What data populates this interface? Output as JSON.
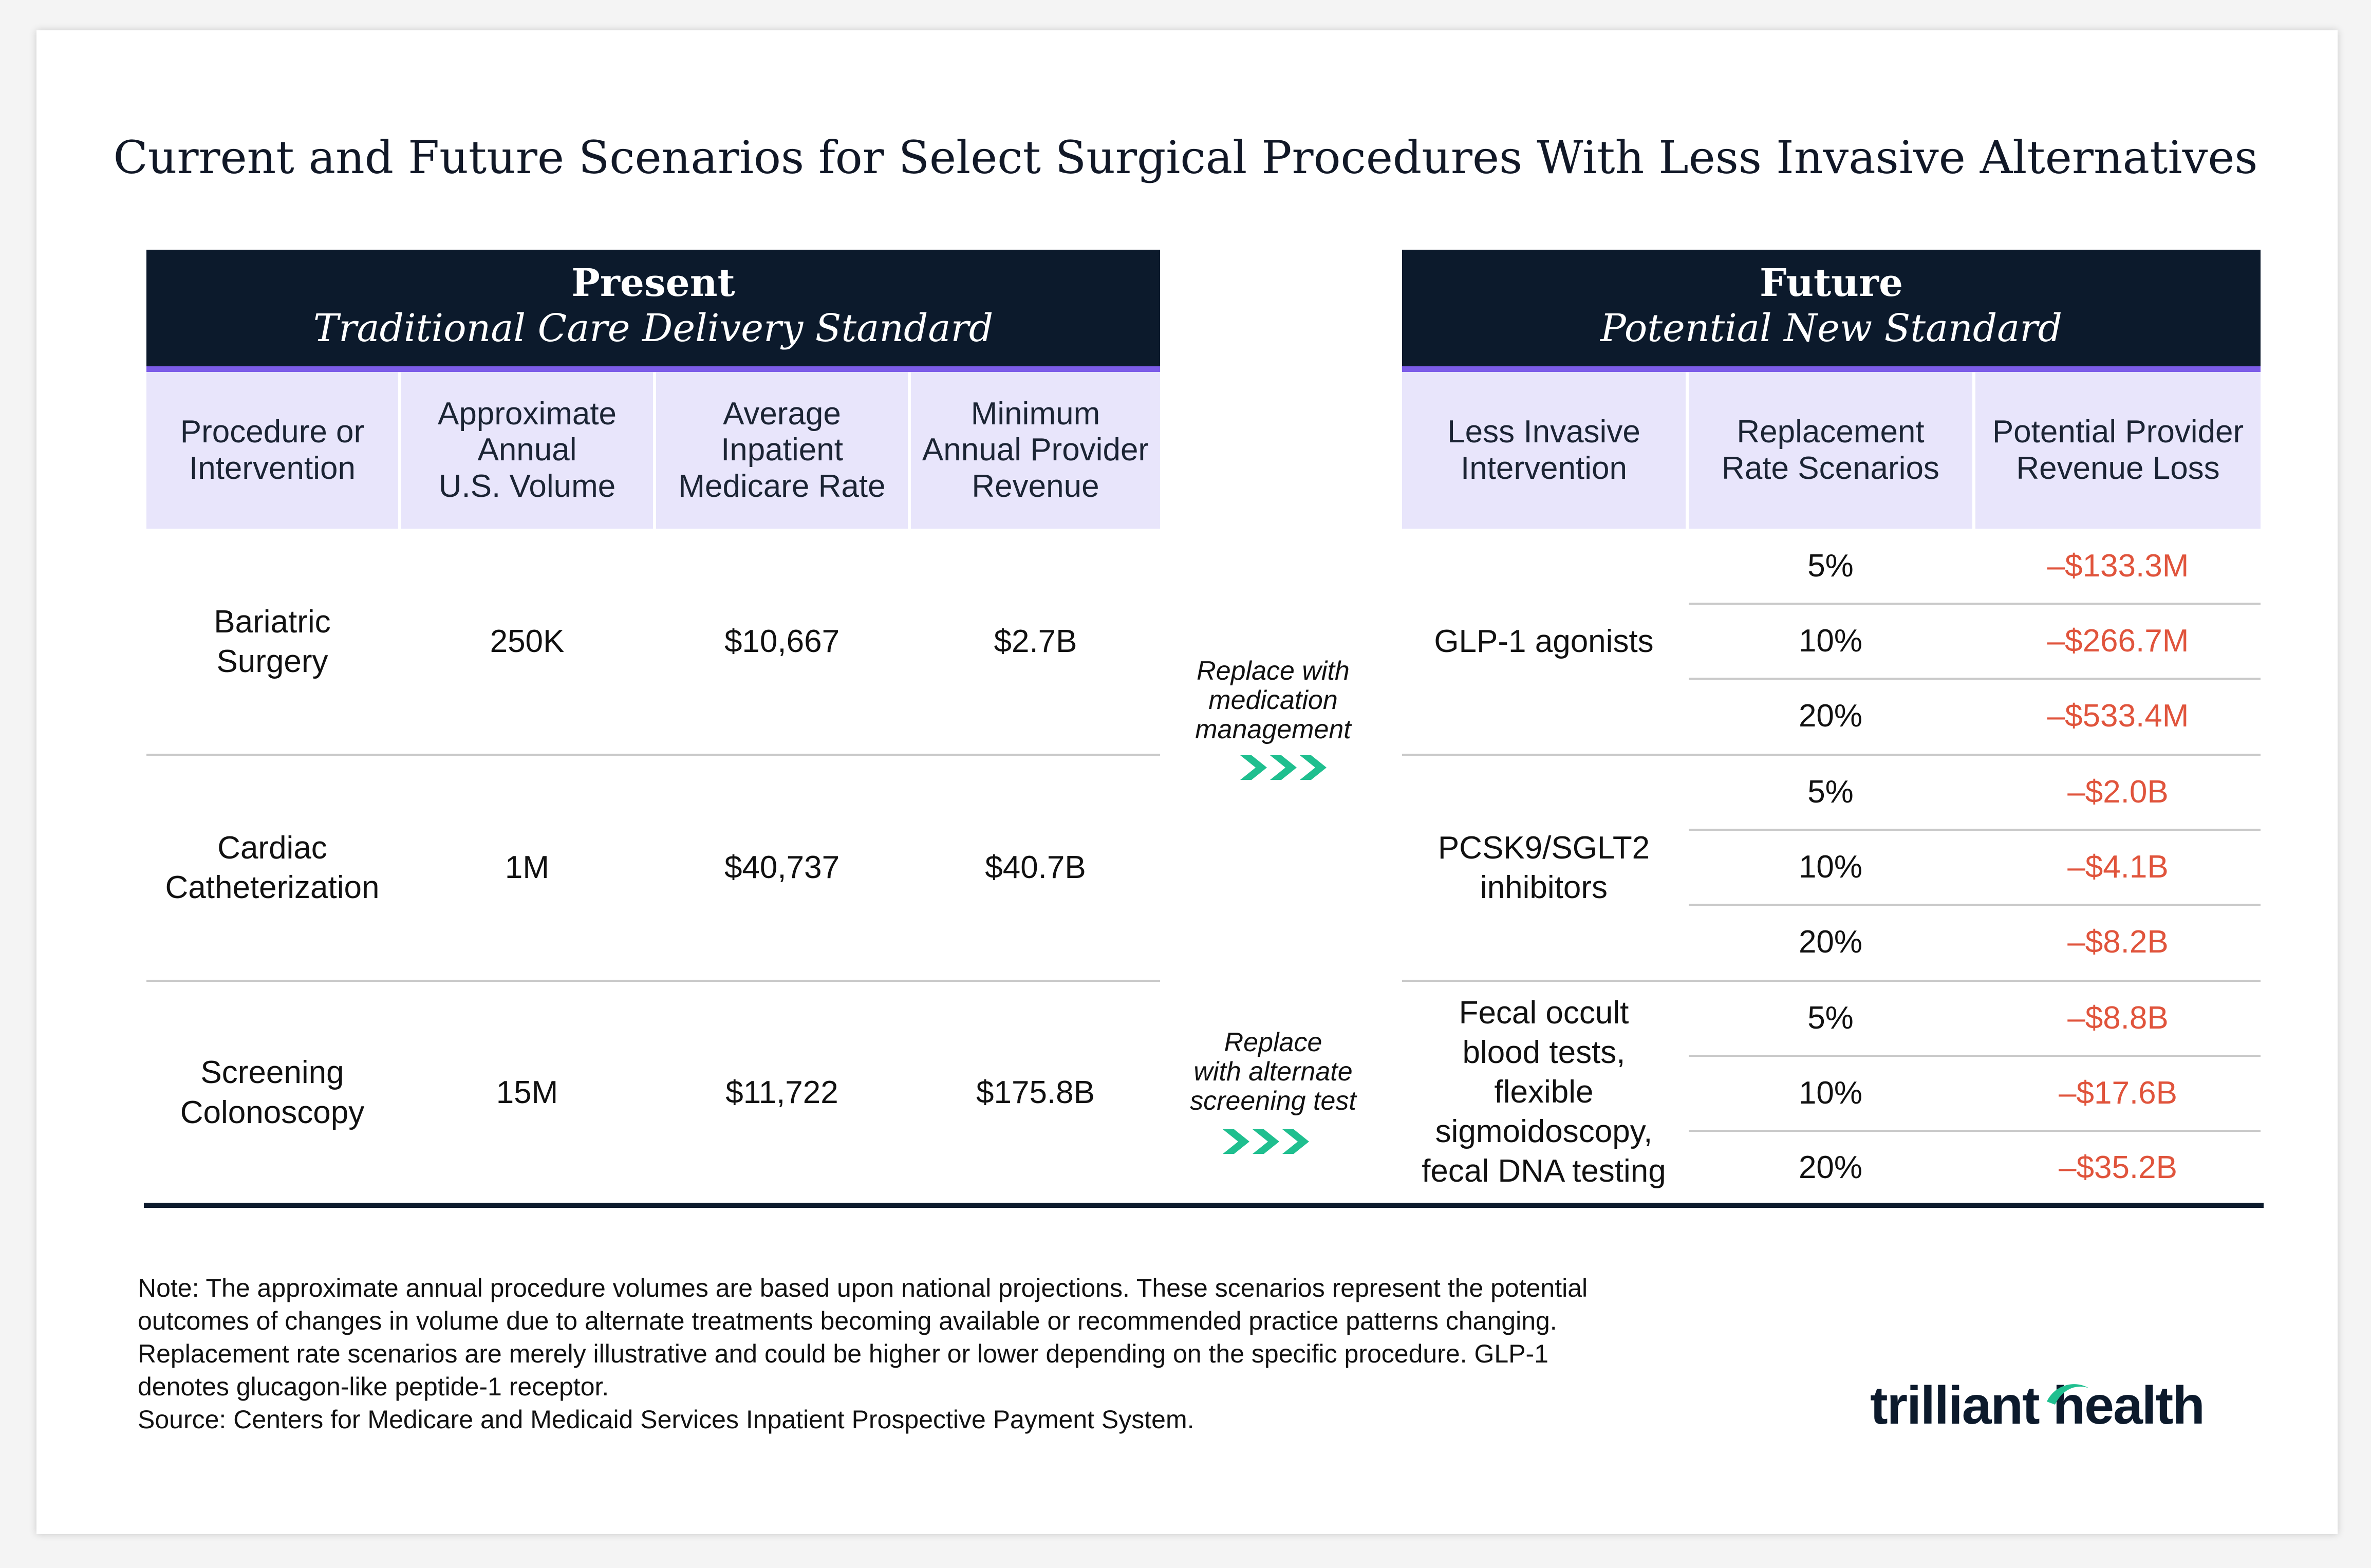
{
  "title": "Current and Future Scenarios for Select Surgical Procedures With Less Invasive Alternatives",
  "present": {
    "heading": "Present",
    "subheading": "Traditional Care Delivery Standard",
    "columns": [
      "Procedure or\nIntervention",
      "Approximate\nAnnual\nU.S. Volume",
      "Average\nInpatient\nMedicare Rate",
      "Minimum\nAnnual Provider\nRevenue"
    ],
    "rows": [
      {
        "procedure": "Bariatric\nSurgery",
        "volume": "250K",
        "rate": "$10,667",
        "revenue": "$2.7B"
      },
      {
        "procedure": "Cardiac\nCatheterization",
        "volume": "1M",
        "rate": "$40,737",
        "revenue": "$40.7B"
      },
      {
        "procedure": "Screening\nColonoscopy",
        "volume": "15M",
        "rate": "$11,722",
        "revenue": "$175.8B"
      }
    ]
  },
  "arrows": [
    {
      "label": "Replace with\nmedication\nmanagement"
    },
    {
      "label": "Replace\nwith alternate\nscreening test"
    }
  ],
  "future": {
    "heading": "Future",
    "subheading": "Potential New Standard",
    "columns": [
      "Less Invasive\nIntervention",
      "Replacement\nRate Scenarios",
      "Potential Provider\nRevenue Loss"
    ],
    "groups": [
      {
        "intervention": "GLP-1 agonists",
        "scenarios": [
          {
            "rate": "5%",
            "loss": "–$133.3M"
          },
          {
            "rate": "10%",
            "loss": "–$266.7M"
          },
          {
            "rate": "20%",
            "loss": "–$533.4M"
          }
        ]
      },
      {
        "intervention": "PCSK9/SGLT2\ninhibitors",
        "scenarios": [
          {
            "rate": "5%",
            "loss": "–$2.0B"
          },
          {
            "rate": "10%",
            "loss": "–$4.1B"
          },
          {
            "rate": "20%",
            "loss": "–$8.2B"
          }
        ]
      },
      {
        "intervention": "Fecal occult\nblood tests,\nflexible\nsigmoidoscopy,\nfecal DNA testing",
        "scenarios": [
          {
            "rate": "5%",
            "loss": "–$8.8B"
          },
          {
            "rate": "10%",
            "loss": "–$17.6B"
          },
          {
            "rate": "20%",
            "loss": "–$35.2B"
          }
        ]
      }
    ]
  },
  "notes": [
    "Note: The approximate annual procedure volumes are based upon national projections. These scenarios represent the potential",
    "outcomes of changes in volume due to alternate treatments becoming available or recommended practice patterns changing.",
    "Replacement rate scenarios are merely illustrative and could be higher or lower depending on the specific procedure. GLP-1",
    "denotes glucagon-like peptide-1 receptor.",
    "Source: Centers for Medicare and Medicaid Services Inpatient Prospective Payment System."
  ],
  "logo": {
    "text": "trilliant health",
    "brand_color": "#1fbf8f",
    "dark_color": "#0c1a2c"
  },
  "colors": {
    "header": "#0c1a2c",
    "accent": "#7c5ce8",
    "column_header_bg": "#e8e5fb",
    "loss": "#e0543c",
    "chevron": "#1fbf8f"
  }
}
